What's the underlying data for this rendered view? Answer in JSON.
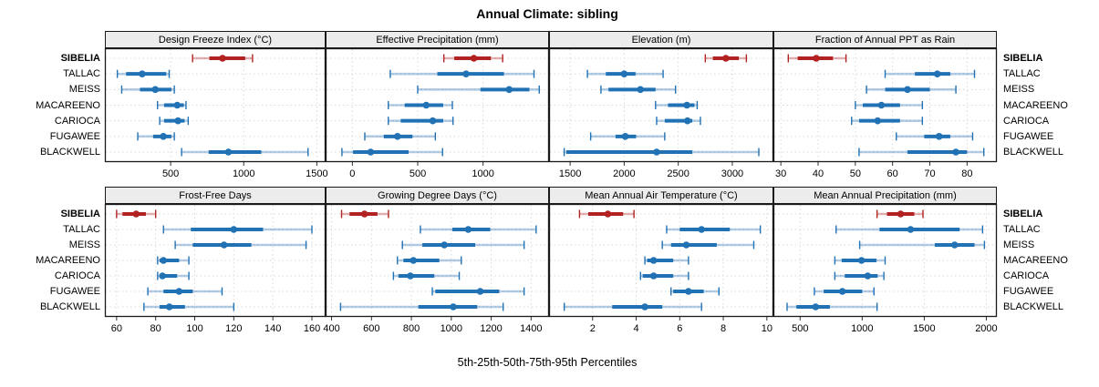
{
  "title": "Annual Climate: sibling",
  "caption": "5th-25th-50th-75th-95th Percentiles",
  "sites": [
    "SIBELIA",
    "TALLAC",
    "MEISS",
    "MACAREENO",
    "CARIOCA",
    "FUGAWEE",
    "BLACKWELL"
  ],
  "highlight_site": "SIBELIA",
  "colors": {
    "highlight": "#b22222",
    "normal": "#2171b5",
    "light_alpha": 0.35,
    "grid": "#d9d9d9",
    "border": "#1a1a1a",
    "strip_bg": "#ececec",
    "tick": "#333333"
  },
  "chart_data": [
    {
      "type": "dotplot-interval",
      "title": "Design Freeze Index (°C)",
      "xlim": [
        50,
        1560
      ],
      "ticks": [
        500,
        1000,
        1500
      ],
      "percentile_labels": [
        "5th",
        "25th",
        "50th",
        "75th",
        "95th"
      ],
      "series": [
        {
          "site": "SIBELIA",
          "values": [
            650,
            765,
            855,
            1010,
            1060
          ]
        },
        {
          "site": "TALLAC",
          "values": [
            135,
            195,
            305,
            470,
            490
          ]
        },
        {
          "site": "MEISS",
          "values": [
            165,
            290,
            395,
            505,
            525
          ]
        },
        {
          "site": "MACAREENO",
          "values": [
            410,
            455,
            545,
            590,
            605
          ]
        },
        {
          "site": "CARIOCA",
          "values": [
            425,
            455,
            550,
            595,
            620
          ]
        },
        {
          "site": "FUGAWEE",
          "values": [
            275,
            380,
            450,
            505,
            525
          ]
        },
        {
          "site": "BLACKWELL",
          "values": [
            575,
            760,
            895,
            1120,
            1440
          ]
        }
      ]
    },
    {
      "type": "dotplot-interval",
      "title": "Effective Precipitation (mm)",
      "xlim": [
        -205,
        1505
      ],
      "ticks": [
        0,
        500,
        1000
      ],
      "series": [
        {
          "site": "SIBELIA",
          "values": [
            700,
            780,
            930,
            1060,
            1150
          ]
        },
        {
          "site": "TALLAC",
          "values": [
            290,
            650,
            870,
            1160,
            1390
          ]
        },
        {
          "site": "MEISS",
          "values": [
            500,
            980,
            1200,
            1355,
            1430
          ]
        },
        {
          "site": "MACAREENO",
          "values": [
            275,
            400,
            565,
            695,
            765
          ]
        },
        {
          "site": "CARIOCA",
          "values": [
            275,
            370,
            615,
            695,
            770
          ]
        },
        {
          "site": "FUGAWEE",
          "values": [
            95,
            240,
            345,
            460,
            635
          ]
        },
        {
          "site": "BLACKWELL",
          "values": [
            -80,
            5,
            140,
            430,
            690
          ]
        }
      ]
    },
    {
      "type": "dotplot-interval",
      "title": "Elevation (m)",
      "xlim": [
        1305,
        3380
      ],
      "ticks": [
        1500,
        2000,
        2500,
        3000
      ],
      "series": [
        {
          "site": "SIBELIA",
          "values": [
            2750,
            2820,
            2940,
            3060,
            3130
          ]
        },
        {
          "site": "TALLAC",
          "values": [
            1660,
            1830,
            2000,
            2105,
            2360
          ]
        },
        {
          "site": "MEISS",
          "values": [
            1785,
            1855,
            2150,
            2290,
            2475
          ]
        },
        {
          "site": "MACAREENO",
          "values": [
            2290,
            2405,
            2580,
            2650,
            2675
          ]
        },
        {
          "site": "CARIOCA",
          "values": [
            2300,
            2375,
            2585,
            2630,
            2705
          ]
        },
        {
          "site": "FUGAWEE",
          "values": [
            1690,
            1920,
            2010,
            2110,
            2375
          ]
        },
        {
          "site": "BLACKWELL",
          "values": [
            1445,
            1465,
            2300,
            2630,
            3245
          ]
        }
      ]
    },
    {
      "type": "dotplot-interval",
      "title": "Fraction of Annual PPT as Rain",
      "xlim": [
        28,
        88
      ],
      "ticks": [
        30,
        40,
        50,
        60,
        70,
        80
      ],
      "series": [
        {
          "site": "SIBELIA",
          "values": [
            32,
            34.5,
            39.5,
            44,
            47.5
          ]
        },
        {
          "site": "TALLAC",
          "values": [
            58,
            66,
            72,
            75.5,
            82
          ]
        },
        {
          "site": "MEISS",
          "values": [
            53,
            58,
            64,
            70,
            77
          ]
        },
        {
          "site": "MACAREENO",
          "values": [
            50,
            52,
            57,
            62,
            68
          ]
        },
        {
          "site": "CARIOCA",
          "values": [
            49,
            51,
            56,
            62,
            68
          ]
        },
        {
          "site": "FUGAWEE",
          "values": [
            61,
            68.5,
            72.5,
            75.5,
            81.5
          ]
        },
        {
          "site": "BLACKWELL",
          "values": [
            51,
            64,
            77,
            80,
            84.5
          ]
        }
      ]
    },
    {
      "type": "dotplot-interval",
      "title": "Frost-Free Days",
      "xlim": [
        54,
        167
      ],
      "ticks": [
        60,
        80,
        100,
        120,
        140,
        160
      ],
      "series": [
        {
          "site": "SIBELIA",
          "values": [
            60,
            63,
            70,
            75,
            80
          ]
        },
        {
          "site": "TALLAC",
          "values": [
            84,
            98,
            120,
            135,
            160
          ]
        },
        {
          "site": "MEISS",
          "values": [
            90,
            99,
            115,
            129,
            157
          ]
        },
        {
          "site": "MACAREENO",
          "values": [
            81,
            82,
            84,
            92,
            97
          ]
        },
        {
          "site": "CARIOCA",
          "values": [
            81,
            82,
            83.5,
            91,
            97
          ]
        },
        {
          "site": "FUGAWEE",
          "values": [
            76,
            84,
            92,
            99,
            114
          ]
        },
        {
          "site": "BLACKWELL",
          "values": [
            74,
            82,
            87,
            95,
            120
          ]
        }
      ]
    },
    {
      "type": "dotplot-interval",
      "title": "Growing Degree Days (°C)",
      "xlim": [
        370,
        1490
      ],
      "ticks": [
        400,
        600,
        800,
        1000,
        1200,
        1400
      ],
      "series": [
        {
          "site": "SIBELIA",
          "values": [
            450,
            490,
            565,
            630,
            685
          ]
        },
        {
          "site": "TALLAC",
          "values": [
            845,
            1005,
            1085,
            1195,
            1425
          ]
        },
        {
          "site": "MEISS",
          "values": [
            755,
            855,
            965,
            1120,
            1365
          ]
        },
        {
          "site": "MACAREENO",
          "values": [
            730,
            760,
            810,
            940,
            1050
          ]
        },
        {
          "site": "CARIOCA",
          "values": [
            710,
            735,
            795,
            915,
            1040
          ]
        },
        {
          "site": "FUGAWEE",
          "values": [
            905,
            920,
            1145,
            1240,
            1365
          ]
        },
        {
          "site": "BLACKWELL",
          "values": [
            445,
            835,
            1010,
            1130,
            1260
          ]
        }
      ]
    },
    {
      "type": "dotplot-interval",
      "title": "Mean Annual Air Temperature (°C)",
      "xlim": [
        0,
        10.3
      ],
      "ticks": [
        2,
        4,
        6,
        8,
        10
      ],
      "series": [
        {
          "site": "SIBELIA",
          "values": [
            1.4,
            1.8,
            2.7,
            3.4,
            3.9
          ]
        },
        {
          "site": "TALLAC",
          "values": [
            5.4,
            6.0,
            7.0,
            8.3,
            9.7
          ]
        },
        {
          "site": "MEISS",
          "values": [
            5.2,
            5.6,
            6.3,
            7.7,
            9.4
          ]
        },
        {
          "site": "MACAREENO",
          "values": [
            4.4,
            4.5,
            4.8,
            5.7,
            6.4
          ]
        },
        {
          "site": "CARIOCA",
          "values": [
            4.2,
            4.3,
            4.8,
            5.7,
            6.4
          ]
        },
        {
          "site": "FUGAWEE",
          "values": [
            5.6,
            5.7,
            6.4,
            7.1,
            7.8
          ]
        },
        {
          "site": "BLACKWELL",
          "values": [
            0.7,
            2.9,
            4.4,
            5.2,
            7.0
          ]
        }
      ]
    },
    {
      "type": "dotplot-interval",
      "title": "Mean Annual Precipitation (mm)",
      "xlim": [
        285,
        2085
      ],
      "ticks": [
        500,
        1000,
        1500,
        2000
      ],
      "series": [
        {
          "site": "SIBELIA",
          "values": [
            1120,
            1200,
            1310,
            1420,
            1490
          ]
        },
        {
          "site": "TALLAC",
          "values": [
            790,
            1140,
            1390,
            1785,
            1970
          ]
        },
        {
          "site": "MEISS",
          "values": [
            980,
            1585,
            1745,
            1905,
            1985
          ]
        },
        {
          "site": "MACAREENO",
          "values": [
            780,
            835,
            995,
            1115,
            1185
          ]
        },
        {
          "site": "CARIOCA",
          "values": [
            780,
            860,
            1045,
            1125,
            1175
          ]
        },
        {
          "site": "FUGAWEE",
          "values": [
            615,
            690,
            840,
            1000,
            1095
          ]
        },
        {
          "site": "BLACKWELL",
          "values": [
            395,
            470,
            625,
            740,
            1120
          ]
        }
      ]
    }
  ]
}
